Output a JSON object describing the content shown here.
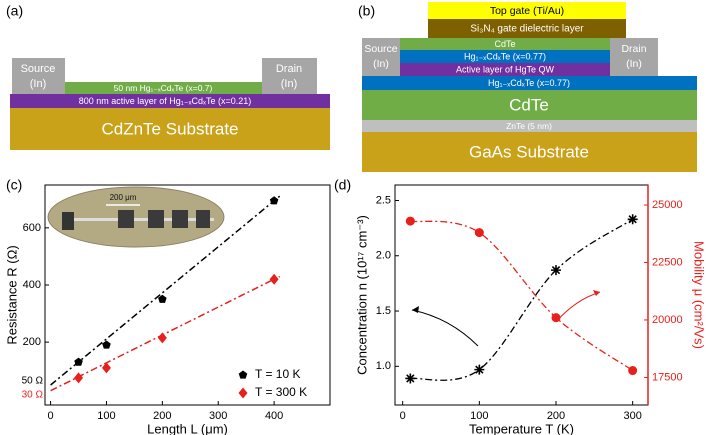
{
  "panels": [
    "(a)",
    "(b)",
    "(c)",
    "(d)"
  ],
  "diagrams": [
    {
      "source": [
        "Source",
        "(In)"
      ],
      "drain": [
        "Drain",
        "(In)"
      ],
      "layers": [
        "50 nm Hg₁₋ₓCdₓTe (x=0.7)",
        "800 nm active layer of Hg₁₋ₓCdₓTe (x=0.21)",
        "CdZnTe Substrate"
      ]
    },
    {
      "source": [
        "Source",
        "(In)"
      ],
      "drain": [
        "Drain",
        "(In)"
      ],
      "layers": [
        "Top gate (Ti/Au)",
        "Si₃N₄ gate dielectric layer",
        "CdTe",
        "Hg₁₋ₓCdₓTe (x=0.77)",
        "Active layer of HgTe QW",
        "Hg₁₋ₓCdₓTe (x=0.77)",
        "CdTe",
        "ZnTe (5 nm)",
        "GaAs Substrate"
      ]
    }
  ],
  "chart_data": [
    {
      "type": "scatter",
      "xlabel": "Length L (μm)",
      "ylabel": "Resistance R (Ω)",
      "xlim": [
        -10,
        500
      ],
      "ylim": [
        -20,
        750
      ],
      "xticks": [
        0,
        100,
        200,
        300,
        400
      ],
      "yticks": [
        200,
        400,
        600
      ],
      "series": [
        {
          "name": "T = 10 K",
          "color": "#000000",
          "marker": "pentagon",
          "x": [
            50,
            100,
            200,
            400
          ],
          "values": [
            130,
            190,
            350,
            695
          ]
        },
        {
          "name": "T = 300 K",
          "color": "#e8201c",
          "marker": "diamond",
          "x": [
            50,
            100,
            200,
            400
          ],
          "values": [
            75,
            110,
            215,
            420
          ]
        }
      ],
      "fits": [
        {
          "color": "#000000",
          "x": [
            0,
            410
          ],
          "values": [
            50,
            711
          ]
        },
        {
          "color": "#e8201c",
          "x": [
            0,
            410
          ],
          "values": [
            30,
            430
          ]
        }
      ],
      "annotations": [
        {
          "text": "50 Ω",
          "value": 50,
          "color": "#000000"
        },
        {
          "text": "30 Ω",
          "value": 30,
          "color": "#e8201c"
        }
      ],
      "inset_label": "200 μm",
      "legend": "lower right"
    },
    {
      "type": "line",
      "xlabel": "Temperature T (K)",
      "ylabel": "Concentration n (10¹⁷ cm⁻³)",
      "y2label": "Mobility μ (cm²/Vs)",
      "y2color": "#e8201c",
      "xlim": [
        -10,
        320
      ],
      "ylim": [
        0.65,
        2.64
      ],
      "y2lim": [
        16300,
        25870
      ],
      "xticks": [
        0,
        100,
        200,
        300
      ],
      "yticks": [
        {
          "value": 1,
          "label": "1.0"
        },
        1.5,
        {
          "value": 2,
          "label": "2.0"
        },
        2.5
      ],
      "y2ticks": [
        17500,
        20000,
        22500,
        25000
      ],
      "x": [
        10,
        100,
        200,
        300
      ],
      "series": [
        {
          "color": "#000000",
          "marker": "asterisk",
          "values": [
            0.89,
            0.97,
            1.87,
            2.33
          ]
        },
        {
          "color": "#e8201c",
          "marker": "circle",
          "axis": "y2",
          "values": [
            24300,
            23800,
            20100,
            17800
          ]
        }
      ]
    }
  ]
}
